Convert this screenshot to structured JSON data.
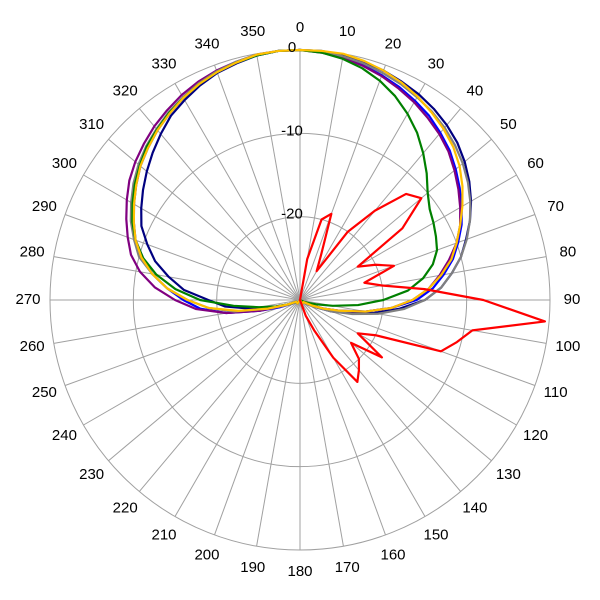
{
  "chart_data": {
    "type": "polar",
    "x": [
      0,
      5,
      10,
      15,
      20,
      25,
      30,
      35,
      40,
      45,
      50,
      55,
      60,
      65,
      70,
      75,
      80,
      85,
      90,
      95,
      100,
      105,
      110,
      115,
      120,
      125,
      130,
      135,
      140,
      145,
      150,
      155,
      160,
      165,
      170,
      175,
      180,
      185,
      190,
      195,
      200,
      205,
      210,
      215,
      220,
      225,
      230,
      235,
      240,
      245,
      250,
      255,
      260,
      265,
      270,
      275,
      280,
      285,
      290,
      295,
      300,
      305,
      310,
      315,
      320,
      325,
      330,
      335,
      340,
      345,
      350,
      355
    ],
    "xticks": [
      0,
      10,
      20,
      30,
      40,
      50,
      60,
      70,
      80,
      90,
      100,
      110,
      120,
      130,
      140,
      150,
      160,
      170,
      180,
      190,
      200,
      210,
      220,
      230,
      240,
      250,
      260,
      270,
      280,
      290,
      300,
      310,
      320,
      330,
      340,
      350
    ],
    "ylim": [
      -30,
      0
    ],
    "yticks": [
      -20,
      -10,
      0
    ],
    "grid": true,
    "series": [
      {
        "color": "#000080",
        "values": [
          0,
          0,
          -0.2,
          -0.4,
          -0.7,
          -1.1,
          -1.5,
          -2,
          -2.6,
          -3.3,
          -4.2,
          -5.2,
          -6.3,
          -7.5,
          -8.8,
          -10,
          -11.5,
          -13,
          -15,
          -18,
          -21,
          -24,
          -26,
          -28,
          -29,
          -29.5,
          -29.5,
          -29.5,
          -29.5,
          -29.5,
          -30,
          -30,
          -30,
          -30,
          -30,
          -30,
          -30,
          -30,
          -30,
          -30,
          -30,
          -30,
          -30,
          -29.5,
          -29.5,
          -29.5,
          -29.5,
          -29.5,
          -29.5,
          -29,
          -28.5,
          -27,
          -24,
          -21,
          -19,
          -16,
          -14,
          -12,
          -10.5,
          -9,
          -8,
          -7,
          -6,
          -5,
          -4,
          -3,
          -2.3,
          -1.6,
          -1,
          -0.6,
          -0.2,
          0
        ]
      },
      {
        "color": "#0000ff",
        "values": [
          0,
          -0.1,
          -0.4,
          -0.8,
          -1.3,
          -1.8,
          -2.4,
          -3,
          -3.8,
          -4.6,
          -5.6,
          -6.6,
          -7.6,
          -8.6,
          -9.8,
          -11,
          -12.5,
          -14,
          -16,
          -19,
          -22,
          -25,
          -27,
          -28.5,
          -29.5,
          -29.5,
          -29.5,
          -29.5,
          -29.5,
          -29.5,
          -30,
          -30,
          -30,
          -30,
          -30,
          -30,
          -30,
          -30,
          -30,
          -30,
          -30,
          -30,
          -30,
          -29.5,
          -29.5,
          -29.5,
          -29.5,
          -29.5,
          -29.5,
          -29,
          -27.5,
          -25,
          -21,
          -18,
          -16,
          -14,
          -12,
          -10.5,
          -9,
          -8,
          -7,
          -6,
          -5,
          -4.2,
          -3.4,
          -2.7,
          -2,
          -1.4,
          -0.9,
          -0.5,
          -0.2,
          0
        ]
      },
      {
        "color": "#800080",
        "values": [
          0,
          -0.2,
          -0.5,
          -0.9,
          -1.4,
          -2,
          -2.6,
          -3.3,
          -4,
          -4.8,
          -5.8,
          -6.8,
          -7.8,
          -8.8,
          -10,
          -11.5,
          -13,
          -14.5,
          -16.5,
          -19,
          -22,
          -25,
          -27,
          -28.5,
          -29.5,
          -29.5,
          -29.5,
          -29.5,
          -29.5,
          -29.5,
          -30,
          -30,
          -30,
          -30,
          -30,
          -30,
          -30,
          -30,
          -30,
          -30,
          -30,
          -30,
          -30,
          -29.5,
          -29.5,
          -29.5,
          -29.5,
          -29.5,
          -29.5,
          -29.5,
          -28,
          -25,
          -21,
          -17.5,
          -15,
          -12.5,
          -10.5,
          -9,
          -8,
          -7,
          -6,
          -5,
          -4.2,
          -3.5,
          -2.8,
          -2.2,
          -1.6,
          -1.1,
          -0.7,
          -0.4,
          -0.1,
          0
        ]
      },
      {
        "color": "#808080",
        "values": [
          0,
          0,
          -0.3,
          -0.6,
          -1,
          -1.4,
          -1.9,
          -2.4,
          -3,
          -3.7,
          -4.5,
          -5.4,
          -6.4,
          -7.5,
          -8.7,
          -10,
          -11.5,
          -13,
          -15,
          -17.5,
          -20.5,
          -23.5,
          -26,
          -28,
          -29,
          -29.5,
          -29.5,
          -29.5,
          -29.5,
          -29.5,
          -30,
          -30,
          -30,
          -30,
          -30,
          -30,
          -30,
          -30,
          -30,
          -30,
          -30,
          -30,
          -30,
          -29.5,
          -29.5,
          -29.5,
          -29.5,
          -29.5,
          -29.5,
          -29,
          -28,
          -26,
          -22,
          -19,
          -16.5,
          -14,
          -12,
          -10,
          -8.8,
          -7.6,
          -6.6,
          -5.6,
          -4.7,
          -3.9,
          -3.2,
          -2.5,
          -1.9,
          -1.3,
          -0.8,
          -0.4,
          -0.1,
          0
        ]
      },
      {
        "color": "#008000",
        "values": [
          0,
          -0.2,
          -0.6,
          -1.2,
          -2,
          -3,
          -4.2,
          -5.5,
          -7,
          -8.5,
          -10,
          -11,
          -11.5,
          -12,
          -12.5,
          -13.5,
          -15,
          -17,
          -20,
          -23,
          -26,
          -28,
          -29,
          -29.5,
          -30,
          -29.5,
          -29.5,
          -29.5,
          -29.5,
          -29.5,
          -30,
          -30,
          -30,
          -30,
          -30,
          -30,
          -30,
          -30,
          -30,
          -30,
          -30,
          -30,
          -30,
          -29.5,
          -29.5,
          -29.5,
          -29.5,
          -29.5,
          -29.5,
          -29.5,
          -28.5,
          -27,
          -25,
          -22,
          -18,
          -15,
          -12.5,
          -10.5,
          -9,
          -7.8,
          -6.8,
          -5.8,
          -4.9,
          -4,
          -3.3,
          -2.6,
          -2,
          -1.4,
          -0.9,
          -0.5,
          -0.2,
          0
        ]
      },
      {
        "color": "#ffc000",
        "values": [
          0,
          0,
          0,
          -0.3,
          -0.7,
          -1.2,
          -1.8,
          -2.5,
          -3.2,
          -4,
          -5,
          -6.2,
          -7.5,
          -8.8,
          -10,
          -11.2,
          -12.8,
          -14.5,
          -16.5,
          -19,
          -22,
          -25,
          -27,
          -28.5,
          -29.5,
          -29.5,
          -29.5,
          -29.5,
          -29.5,
          -29.5,
          -30,
          -30,
          -30,
          -30,
          -30,
          -30,
          -30,
          -30,
          -30,
          -30,
          -30,
          -30,
          -30,
          -29.5,
          -29.5,
          -29.5,
          -29.5,
          -29.5,
          -29.5,
          -29.5,
          -28.5,
          -26,
          -22.5,
          -19,
          -16.5,
          -14,
          -12,
          -10.3,
          -9,
          -8,
          -7,
          -6,
          -5,
          -4.2,
          -3.4,
          -2.7,
          -2,
          -1.4,
          -0.9,
          -0.5,
          -0.1,
          0
        ]
      },
      {
        "color": "#ff0000",
        "values": [
          -30,
          -30,
          -25,
          -20,
          -19,
          -24,
          -26,
          -20,
          -16,
          -12,
          -11,
          -15,
          -22,
          -20,
          -18,
          -22,
          -20,
          -15,
          -8,
          -0.5,
          -9,
          -10.5,
          -12,
          -20,
          -22,
          -18,
          -22,
          -20,
          -19,
          -18,
          -22,
          -26,
          -28,
          -30,
          -30,
          -30,
          -30,
          -30,
          -30,
          -30,
          -30,
          -30,
          -30,
          -30,
          -30,
          -30,
          -30,
          -30,
          -30,
          -30,
          -30,
          -30,
          -30,
          -30,
          -30,
          -30,
          -30,
          -30,
          -30,
          -30,
          -30,
          -30,
          -30,
          -30,
          -30,
          -30,
          -30,
          -30,
          -30,
          -30,
          -30,
          -30
        ]
      }
    ]
  }
}
